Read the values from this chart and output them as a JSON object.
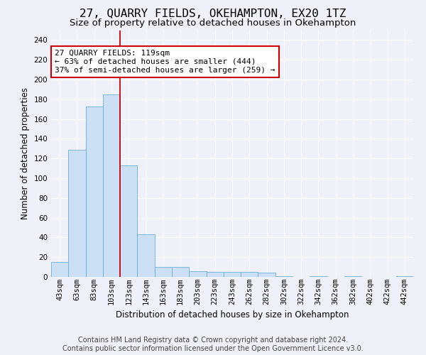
{
  "title1": "27, QUARRY FIELDS, OKEHAMPTON, EX20 1TZ",
  "title2": "Size of property relative to detached houses in Okehampton",
  "xlabel": "Distribution of detached houses by size in Okehampton",
  "ylabel": "Number of detached properties",
  "categories": [
    "43sqm",
    "63sqm",
    "83sqm",
    "103sqm",
    "123sqm",
    "143sqm",
    "163sqm",
    "183sqm",
    "203sqm",
    "223sqm",
    "243sqm",
    "262sqm",
    "282sqm",
    "302sqm",
    "322sqm",
    "342sqm",
    "362sqm",
    "382sqm",
    "402sqm",
    "422sqm",
    "442sqm"
  ],
  "values": [
    15,
    129,
    173,
    185,
    113,
    43,
    10,
    10,
    6,
    5,
    5,
    5,
    4,
    1,
    0,
    1,
    0,
    1,
    0,
    0,
    1
  ],
  "bar_color": "#cce0f5",
  "bar_edge_color": "#6aaed6",
  "vline_index": 3.5,
  "vline_color": "#cc0000",
  "annotation_line1": "27 QUARRY FIELDS: 119sqm",
  "annotation_line2": "← 63% of detached houses are smaller (444)",
  "annotation_line3": "37% of semi-detached houses are larger (259) →",
  "annotation_box_facecolor": "#ffffff",
  "annotation_box_edgecolor": "#cc0000",
  "ylim": [
    0,
    250
  ],
  "yticks": [
    0,
    20,
    40,
    60,
    80,
    100,
    120,
    140,
    160,
    180,
    200,
    220,
    240
  ],
  "bg_color": "#eef2f8",
  "grid_color": "#ffffff",
  "footer1": "Contains HM Land Registry data © Crown copyright and database right 2024.",
  "footer2": "Contains public sector information licensed under the Open Government Licence v3.0.",
  "title1_fontsize": 11.5,
  "title2_fontsize": 9.5,
  "tick_fontsize": 7.5,
  "ylabel_fontsize": 8.5,
  "xlabel_fontsize": 8.5,
  "annot_fontsize": 8,
  "footer_fontsize": 7
}
